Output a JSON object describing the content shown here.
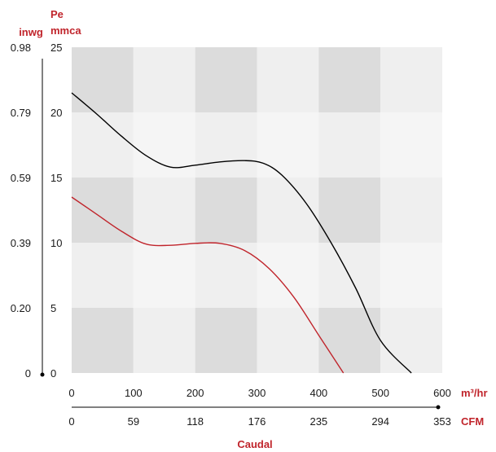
{
  "chart_data": {
    "type": "line",
    "title": "",
    "xlabel": "Caudal",
    "ylabel": "Pe",
    "x_unit_primary": "m³/hr",
    "x_unit_secondary": "CFM",
    "y_unit_primary": "mmca",
    "y_unit_secondary": "inwg",
    "xlim": [
      0,
      600
    ],
    "ylim": [
      0,
      25
    ],
    "x_ticks": [
      "0",
      "100",
      "200",
      "300",
      "400",
      "500",
      "600"
    ],
    "x_ticks_secondary": [
      "0",
      "59",
      "118",
      "176",
      "235",
      "294",
      "353"
    ],
    "y_ticks": [
      "0",
      "5",
      "10",
      "15",
      "20",
      "25"
    ],
    "y_ticks_secondary": [
      "0",
      "0.20",
      "0.39",
      "0.59",
      "0.79",
      "0.98"
    ],
    "grid": true,
    "series": [
      {
        "color": "#000000",
        "x": [
          0,
          40,
          80,
          120,
          160,
          200,
          240,
          280,
          310,
          340,
          380,
          420,
          460,
          500,
          550
        ],
        "y": [
          21.5,
          19.9,
          18.2,
          16.7,
          15.8,
          15.95,
          16.2,
          16.3,
          16.1,
          15.2,
          13.0,
          10.0,
          6.5,
          2.5,
          0
        ]
      },
      {
        "color": "#c0242b",
        "x": [
          0,
          40,
          80,
          120,
          160,
          200,
          240,
          280,
          320,
          360,
          400,
          440
        ],
        "y": [
          13.5,
          12.2,
          10.9,
          9.9,
          9.8,
          9.95,
          9.95,
          9.4,
          8.0,
          5.8,
          2.9,
          0
        ]
      }
    ],
    "colors": {
      "band_dark": "#dcdcdc",
      "band_light": "#efefef",
      "band_lightest": "#f5f5f5",
      "accent": "#c0242b"
    }
  }
}
